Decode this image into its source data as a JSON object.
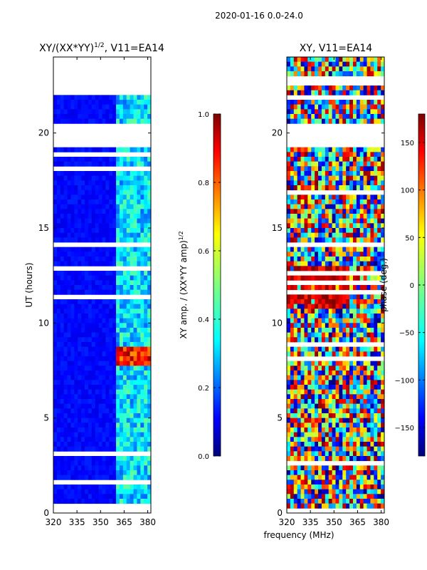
{
  "chart_data": [
    {
      "type": "heatmap",
      "title": "XY/(XX*YY)",
      "title_exponent": "1/2",
      "title_suffix": ", V11=EA14",
      "xlabel": "",
      "ylabel": "UT (hours)",
      "xlim": [
        320,
        382
      ],
      "ylim": [
        0,
        24
      ],
      "xticks": [
        "320",
        "335",
        "350",
        "365",
        "380"
      ],
      "xtick_values": [
        320,
        335,
        350,
        365,
        380
      ],
      "yticks": [
        "0",
        "5",
        "10",
        "15",
        "20"
      ],
      "ytick_values": [
        0,
        5,
        10,
        15,
        20
      ],
      "colormap": "jet",
      "colorbar": {
        "label": "XY amp. / (XX*YY amp)",
        "label_exponent": "1/2",
        "range": [
          0.0,
          1.0
        ],
        "ticks": [
          "0.0",
          "0.2",
          "0.4",
          "0.6",
          "0.8",
          "1.0"
        ],
        "tick_values": [
          0.0,
          0.2,
          0.4,
          0.6,
          0.8,
          1.0
        ]
      },
      "flagged_hours": [
        [
          0.1,
          0.6
        ],
        [
          19.15,
          20.5
        ],
        [
          22.0,
          23.9
        ]
      ],
      "features": [
        {
          "x": [
            360,
            382
          ],
          "y": [
            0,
            24
          ],
          "level": 0.35,
          "note": "striped higher-amplitude band"
        },
        {
          "x": [
            360,
            382
          ],
          "y": [
            7.8,
            8.8
          ],
          "level": 0.85,
          "note": "high amplitude block"
        }
      ],
      "background_level": 0.1
    },
    {
      "type": "heatmap",
      "title": "XY, V11=EA14",
      "xlabel": "frequency (MHz)",
      "ylabel": "",
      "xlim": [
        320,
        382
      ],
      "ylim": [
        0,
        24
      ],
      "xticks": [
        "320",
        "335",
        "350",
        "365",
        "380"
      ],
      "xtick_values": [
        320,
        335,
        350,
        365,
        380
      ],
      "yticks": [
        "0",
        "5",
        "10",
        "15",
        "20"
      ],
      "ytick_values": [
        0,
        5,
        10,
        15,
        20
      ],
      "colormap": "jet",
      "colorbar": {
        "label": "phase (deg.)",
        "range": [
          -180,
          180
        ],
        "ticks": [
          "−150",
          "−100",
          "−50",
          "0",
          "50",
          "100",
          "150"
        ],
        "tick_values": [
          -150,
          -100,
          -50,
          0,
          50,
          100,
          150
        ]
      },
      "flagged_hours": [
        [
          19.15,
          20.5
        ]
      ],
      "features": [
        {
          "x": [
            320,
            359
          ],
          "y": [
            10.8,
            13.0
          ],
          "level": 150,
          "note": "red phase block"
        }
      ]
    }
  ],
  "figure": {
    "suptitle": "2020-01-16 0.0-24.0"
  },
  "colors": {
    "jet": [
      "#00007f",
      "#0000ff",
      "#007fff",
      "#00ffff",
      "#7fff7f",
      "#ffff00",
      "#ff7f00",
      "#ff0000",
      "#7f0000"
    ],
    "flagged": "#ffffff",
    "axis": "#000000"
  }
}
